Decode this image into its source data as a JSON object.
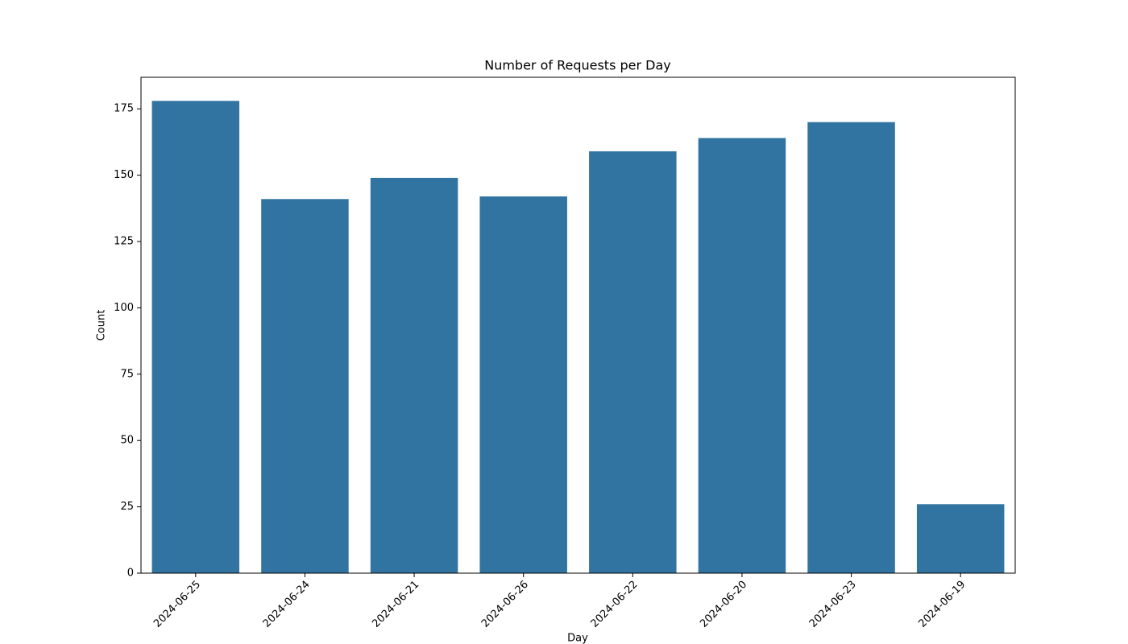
{
  "chart_data": {
    "type": "bar",
    "title": "Number of Requests per Day",
    "x_label": "Day",
    "y_label": "Count",
    "categories": [
      "2024-06-25",
      "2024-06-24",
      "2024-06-21",
      "2024-06-26",
      "2024-06-22",
      "2024-06-20",
      "2024-06-23",
      "2024-06-19"
    ],
    "values": [
      178,
      141,
      149,
      142,
      159,
      164,
      170,
      26
    ],
    "color": "#3274a1",
    "ylim": [
      0,
      186.9
    ],
    "yticks": [
      0,
      25,
      50,
      75,
      100,
      125,
      150,
      175
    ],
    "grid": false
  }
}
